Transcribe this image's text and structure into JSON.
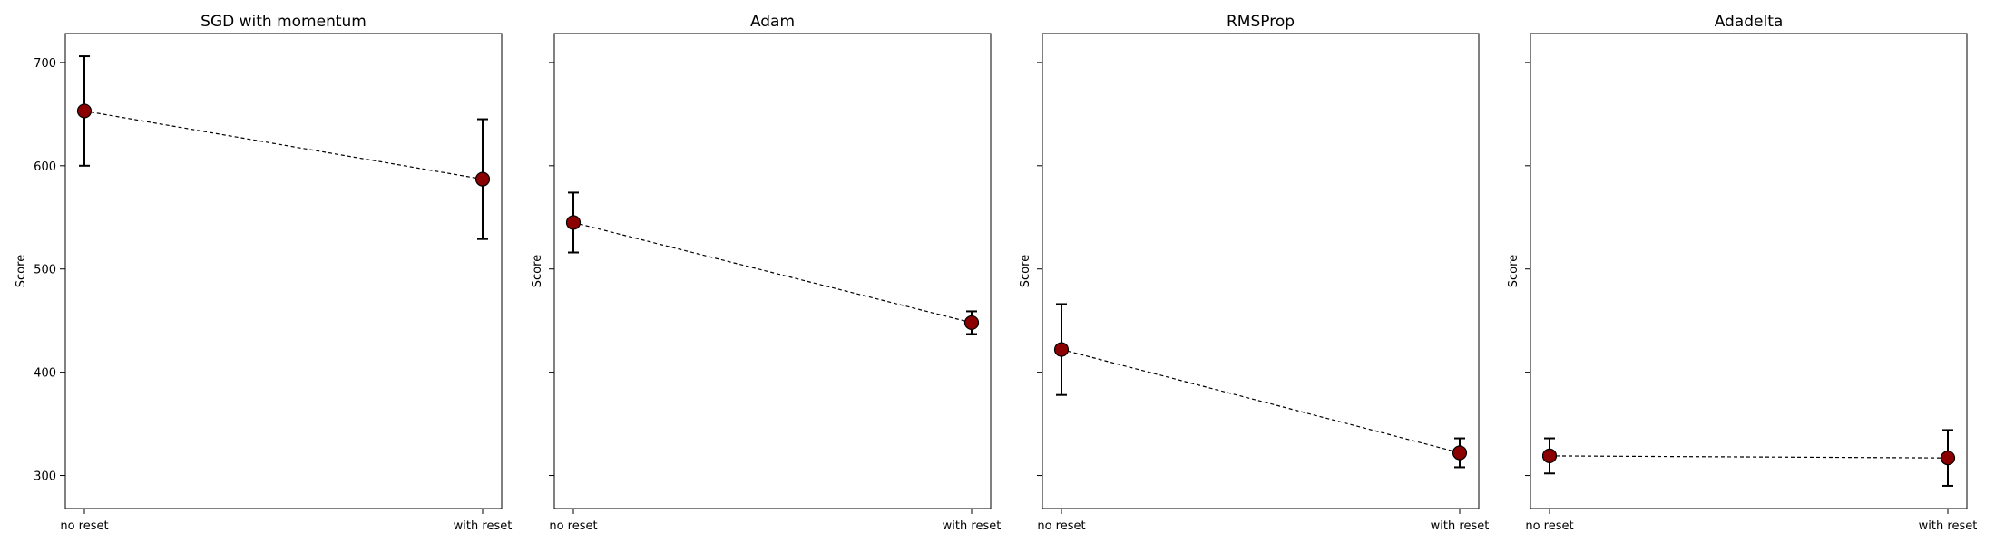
{
  "chart_data": [
    {
      "type": "scatter",
      "title": "SGD with momentum",
      "xlabel": "",
      "ylabel": "Score",
      "categories": [
        "no reset",
        "with reset"
      ],
      "values": [
        653,
        587
      ],
      "errors": [
        53,
        58
      ],
      "ylim": [
        268,
        728
      ],
      "yticks": [
        300,
        400,
        500,
        600,
        700
      ],
      "ytick_labels_shown": true,
      "connector": "dashed",
      "marker_color": "#8b0000",
      "grid": false
    },
    {
      "type": "scatter",
      "title": "Adam",
      "xlabel": "",
      "ylabel": "Score",
      "categories": [
        "no reset",
        "with reset"
      ],
      "values": [
        545,
        448
      ],
      "errors": [
        29,
        11
      ],
      "ylim": [
        268,
        728
      ],
      "yticks": [
        300,
        400,
        500,
        600,
        700
      ],
      "ytick_labels_shown": false,
      "connector": "dashed",
      "marker_color": "#8b0000",
      "grid": false
    },
    {
      "type": "scatter",
      "title": "RMSProp",
      "xlabel": "",
      "ylabel": "Score",
      "categories": [
        "no reset",
        "with reset"
      ],
      "values": [
        422,
        322
      ],
      "errors": [
        44,
        14
      ],
      "ylim": [
        268,
        728
      ],
      "yticks": [
        300,
        400,
        500,
        600,
        700
      ],
      "ytick_labels_shown": false,
      "connector": "dashed",
      "marker_color": "#8b0000",
      "grid": false
    },
    {
      "type": "scatter",
      "title": "Adadelta",
      "xlabel": "",
      "ylabel": "Score",
      "categories": [
        "no reset",
        "with reset"
      ],
      "values": [
        319,
        317
      ],
      "errors": [
        17,
        27
      ],
      "ylim": [
        268,
        728
      ],
      "yticks": [
        300,
        400,
        500,
        600,
        700
      ],
      "ytick_labels_shown": false,
      "connector": "dashed",
      "marker_color": "#8b0000",
      "grid": false
    }
  ]
}
